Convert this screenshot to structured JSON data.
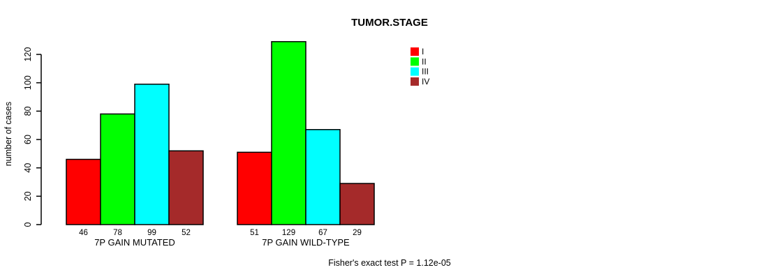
{
  "chart_data": {
    "type": "bar",
    "title": "TUMOR.STAGE",
    "ylabel": "number of cases",
    "xlabel": "",
    "yticks": [
      0,
      20,
      40,
      60,
      80,
      100,
      120
    ],
    "ylim": [
      0,
      130
    ],
    "grid": false,
    "categories": [
      "7P GAIN MUTATED",
      "7P GAIN WILD-TYPE"
    ],
    "series": [
      {
        "name": "I",
        "color": "#ff0000",
        "values": [
          46,
          51
        ]
      },
      {
        "name": "II",
        "color": "#00ff00",
        "values": [
          78,
          129
        ]
      },
      {
        "name": "III",
        "color": "#00ffff",
        "values": [
          99,
          67
        ]
      },
      {
        "name": "IV",
        "color": "#a52a2a",
        "values": [
          52,
          29
        ]
      }
    ],
    "bar_value_labels_shown": true,
    "legend_position": "top-right",
    "annotation": "Fisher's exact test P = 1.12e-05"
  },
  "colors": {
    "text": "#000000",
    "background": "#ffffff",
    "axis": "#000000",
    "bar_border": "#000000"
  }
}
